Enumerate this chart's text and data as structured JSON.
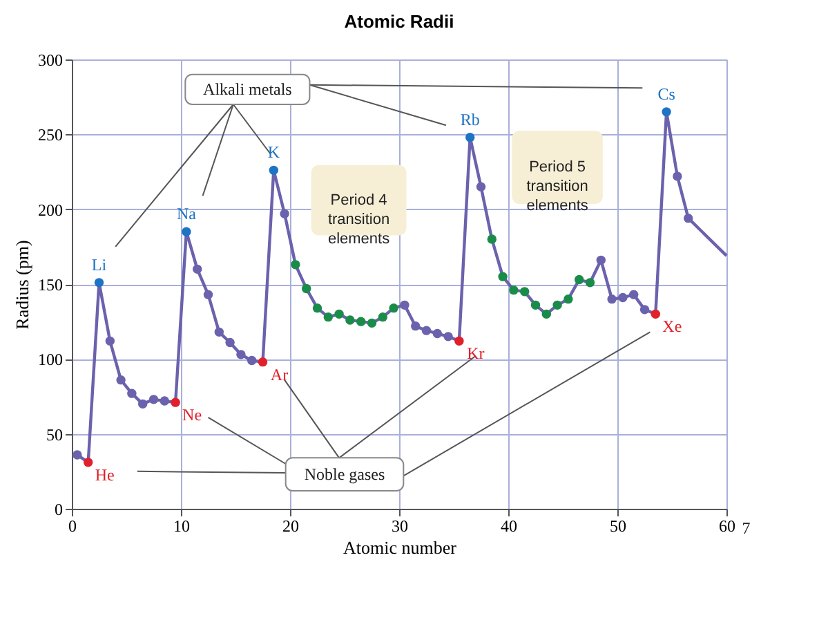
{
  "chart_data": {
    "type": "line",
    "title": "Atomic Radii",
    "xlabel": "Atomic number",
    "ylabel": "Radius (pm)",
    "xlim": [
      0,
      60
    ],
    "xticks": [
      0,
      10,
      20,
      30,
      40,
      50,
      60
    ],
    "ylim": [
      0,
      300
    ],
    "yticks": [
      0,
      50,
      100,
      150,
      200,
      250,
      300
    ],
    "grid": true,
    "marker": "circle",
    "line_style": "solid",
    "series": [
      {
        "color": "#6b62ad",
        "x": [
          0.5,
          1.5,
          2.5,
          3.5,
          4.5,
          5.5,
          6.5,
          7.5,
          8.5,
          9.5,
          10.5,
          11.5,
          12.5,
          13.5,
          14.5,
          15.5,
          16.5,
          17.5,
          18.5,
          19.5,
          20.5,
          21.5,
          22.5,
          23.5,
          24.5,
          25.5,
          26.5,
          27.5,
          28.5,
          29.5,
          30.5,
          31.5,
          32.5,
          33.5,
          34.5,
          35.5,
          36.5,
          37.5,
          38.5,
          39.5,
          40.5,
          41.5,
          42.5,
          43.5,
          44.5,
          45.5,
          46.5,
          47.5,
          48.5,
          49.5,
          50.5,
          51.5,
          52.5,
          53.5,
          54.5,
          55.5,
          56.5,
          60
        ],
        "values": [
          36,
          31,
          151,
          112,
          86,
          77,
          70,
          73,
          72,
          71,
          185,
          160,
          143,
          118,
          111,
          103,
          99,
          98,
          226,
          197,
          163,
          147,
          134,
          128,
          130,
          126,
          125,
          124,
          128,
          134,
          136,
          122,
          119,
          117,
          115,
          112,
          248,
          215,
          180,
          155,
          146,
          145,
          136,
          130,
          136,
          140,
          153,
          151,
          166,
          140,
          141,
          143,
          133,
          130,
          265,
          222,
          194,
          169
        ],
        "colors": [
          "#6b62ad",
          "#e0202a",
          "#1f73c4",
          "#6b62ad",
          "#6b62ad",
          "#6b62ad",
          "#6b62ad",
          "#6b62ad",
          "#6b62ad",
          "#e0202a",
          "#1f73c4",
          "#6b62ad",
          "#6b62ad",
          "#6b62ad",
          "#6b62ad",
          "#6b62ad",
          "#6b62ad",
          "#e0202a",
          "#1f73c4",
          "#6b62ad",
          "#1a8c4a",
          "#1a8c4a",
          "#1a8c4a",
          "#1a8c4a",
          "#1a8c4a",
          "#1a8c4a",
          "#1a8c4a",
          "#1a8c4a",
          "#1a8c4a",
          "#1a8c4a",
          "#6b62ad",
          "#6b62ad",
          "#6b62ad",
          "#6b62ad",
          "#6b62ad",
          "#e0202a",
          "#1f73c4",
          "#6b62ad",
          "#1a8c4a",
          "#1a8c4a",
          "#1a8c4a",
          "#1a8c4a",
          "#1a8c4a",
          "#1a8c4a",
          "#1a8c4a",
          "#1a8c4a",
          "#1a8c4a",
          "#1a8c4a",
          "#6b62ad",
          "#6b62ad",
          "#6b62ad",
          "#6b62ad",
          "#6b62ad",
          "#e0202a",
          "#1f73c4",
          "#6b62ad",
          "#6b62ad",
          null
        ]
      }
    ],
    "annotations": [
      {
        "text": "Li",
        "x": 2.5,
        "y": 151
      },
      {
        "text": "Na",
        "x": 10.5,
        "y": 185
      },
      {
        "text": "K",
        "x": 18.5,
        "y": 226
      },
      {
        "text": "Rb",
        "x": 36.5,
        "y": 248
      },
      {
        "text": "Cs",
        "x": 54.5,
        "y": 265
      },
      {
        "text": "He",
        "x": 1.5,
        "y": 31
      },
      {
        "text": "Ne",
        "x": 9.5,
        "y": 71
      },
      {
        "text": "Ar",
        "x": 17.5,
        "y": 98
      },
      {
        "text": "Kr",
        "x": 35.5,
        "y": 112
      },
      {
        "text": "Xe",
        "x": 53.5,
        "y": 130
      },
      "Alkali metals",
      "Noble gases",
      "Period 4\ntransition\nelements",
      "Period 5\ntransition\nelements",
      "7"
    ]
  }
}
